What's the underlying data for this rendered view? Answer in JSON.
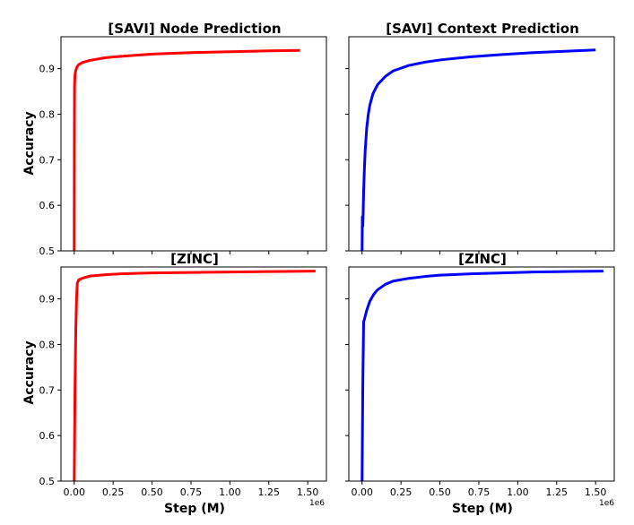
{
  "chart_data": [
    {
      "type": "line",
      "title": "[SAVI] Node Prediction",
      "xlabel": "",
      "ylabel": "Accuracy",
      "xlim": [
        -85000,
        1620000
      ],
      "ylim": [
        0.5,
        0.97
      ],
      "yticks": [
        "0.5",
        "0.6",
        "0.7",
        "0.8",
        "0.9"
      ],
      "color": "#ff0000",
      "series": [
        {
          "x": [
            0,
            1000,
            2000,
            4000,
            6000,
            8000,
            10000,
            15000,
            20000,
            30000,
            50000,
            100000,
            200000,
            300000,
            500000,
            750000,
            1000000,
            1250000,
            1450000
          ],
          "y": [
            0.5,
            0.75,
            0.86,
            0.88,
            0.888,
            0.893,
            0.896,
            0.901,
            0.905,
            0.909,
            0.913,
            0.918,
            0.924,
            0.927,
            0.932,
            0.935,
            0.937,
            0.939,
            0.94
          ]
        }
      ]
    },
    {
      "type": "line",
      "title": "[SAVI] Context Prediction",
      "xlabel": "",
      "ylabel": "",
      "xlim": [
        -85000,
        1620000
      ],
      "ylim": [
        0.5,
        0.97
      ],
      "color": "#0000ff",
      "series": [
        {
          "x": [
            0,
            2000,
            5000,
            8000,
            10000,
            15000,
            20000,
            30000,
            40000,
            50000,
            70000,
            100000,
            150000,
            200000,
            300000,
            400000,
            500000,
            700000,
            900000,
            1100000,
            1300000,
            1500000
          ],
          "y": [
            0.5,
            0.575,
            0.555,
            0.6,
            0.63,
            0.68,
            0.72,
            0.77,
            0.8,
            0.82,
            0.845,
            0.865,
            0.883,
            0.895,
            0.907,
            0.914,
            0.919,
            0.926,
            0.931,
            0.935,
            0.938,
            0.941
          ]
        }
      ]
    },
    {
      "type": "line",
      "title": "[ZINC]",
      "xlabel": "Step (M)",
      "ylabel": "Accuracy",
      "xlim": [
        -85000,
        1620000
      ],
      "ylim": [
        0.5,
        0.97
      ],
      "xticks": [
        "0.00",
        "0.25",
        "0.50",
        "0.75",
        "1.00",
        "1.25",
        "1.50"
      ],
      "yticks": [
        "0.5",
        "0.6",
        "0.7",
        "0.8",
        "0.9"
      ],
      "x_offset_label": "1e6",
      "color": "#ff0000",
      "series": [
        {
          "x": [
            0,
            5000,
            10000,
            15000,
            20000,
            30000,
            50000,
            100000,
            200000,
            300000,
            500000,
            750000,
            1000000,
            1250000,
            1550000
          ],
          "y": [
            0.5,
            0.7,
            0.83,
            0.9,
            0.935,
            0.942,
            0.945,
            0.95,
            0.953,
            0.955,
            0.957,
            0.958,
            0.959,
            0.96,
            0.961
          ]
        }
      ]
    },
    {
      "type": "line",
      "title": "[ZINC]",
      "xlabel": "Step (M)",
      "ylabel": "",
      "xlim": [
        -85000,
        1620000
      ],
      "ylim": [
        0.5,
        0.97
      ],
      "xticks": [
        "0.00",
        "0.25",
        "0.50",
        "0.75",
        "1.00",
        "1.25",
        "1.50"
      ],
      "x_offset_label": "1e6",
      "color": "#0000ff",
      "series": [
        {
          "x": [
            0,
            5000,
            10000,
            15000,
            20000,
            30000,
            50000,
            75000,
            100000,
            150000,
            200000,
            300000,
            400000,
            500000,
            700000,
            900000,
            1100000,
            1300000,
            1550000
          ],
          "y": [
            0.5,
            0.72,
            0.85,
            0.855,
            0.862,
            0.875,
            0.895,
            0.91,
            0.92,
            0.932,
            0.939,
            0.945,
            0.949,
            0.952,
            0.955,
            0.957,
            0.959,
            0.96,
            0.961
          ]
        }
      ]
    }
  ]
}
